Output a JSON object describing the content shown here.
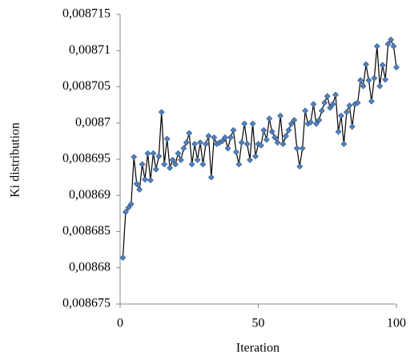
{
  "chart_data": {
    "type": "line",
    "x_label": "Iteration",
    "y_label": "Ki distribution",
    "x": [
      1,
      2,
      3,
      4,
      5,
      6,
      7,
      8,
      9,
      10,
      11,
      12,
      13,
      14,
      15,
      16,
      17,
      18,
      19,
      20,
      21,
      22,
      23,
      24,
      25,
      26,
      27,
      28,
      29,
      30,
      31,
      32,
      33,
      34,
      35,
      36,
      37,
      38,
      39,
      40,
      41,
      42,
      43,
      44,
      45,
      46,
      47,
      48,
      49,
      50,
      51,
      52,
      53,
      54,
      55,
      56,
      57,
      58,
      59,
      60,
      61,
      62,
      63,
      64,
      65,
      66,
      67,
      68,
      69,
      70,
      71,
      72,
      73,
      74,
      75,
      76,
      77,
      78,
      79,
      80,
      81,
      82,
      83,
      84,
      85,
      86,
      87,
      88,
      89,
      90,
      91,
      92,
      93,
      94,
      95,
      96,
      97,
      98,
      99,
      100
    ],
    "values": [
      0.0086814,
      0.0086877,
      0.0086883,
      0.0086888,
      0.0086953,
      0.0086916,
      0.0086908,
      0.0086943,
      0.0086922,
      0.0086958,
      0.0086921,
      0.0086958,
      0.0086936,
      0.0086954,
      0.0087015,
      0.0086943,
      0.0086978,
      0.0086938,
      0.0086949,
      0.0086943,
      0.0086958,
      0.0086949,
      0.0086965,
      0.0086973,
      0.0086986,
      0.0086943,
      0.0086971,
      0.0086949,
      0.0086973,
      0.0086943,
      0.0086971,
      0.0086982,
      0.0086925,
      0.008698,
      0.0086971,
      0.0086973,
      0.0086975,
      0.008698,
      0.0086965,
      0.008698,
      0.008699,
      0.008696,
      0.0086943,
      0.0086973,
      0.0086999,
      0.0086971,
      0.0086949,
      0.0086999,
      0.0086954,
      0.0086971,
      0.0086969,
      0.008699,
      0.0086977,
      0.0087006,
      0.0086988,
      0.008698,
      0.0086973,
      0.008701,
      0.0086971,
      0.0086982,
      0.008699,
      0.0086999,
      0.0087004,
      0.0086965,
      0.008694,
      0.0086965,
      0.0087017,
      0.0086999,
      0.0087001,
      0.0087026,
      0.0086999,
      0.0087004,
      0.0087017,
      0.0087028,
      0.0087037,
      0.0087021,
      0.0087026,
      0.0087039,
      0.0086988,
      0.008701,
      0.0086971,
      0.0087015,
      0.0087024,
      0.0086995,
      0.0087026,
      0.0087028,
      0.0087059,
      0.0087051,
      0.0087081,
      0.0087059,
      0.008703,
      0.0087062,
      0.0087106,
      0.0087051,
      0.008708,
      0.008706,
      0.0087109,
      0.0087115,
      0.0087106,
      0.0087077
    ],
    "line_color": "#000000",
    "marker_color": "#4f81bd",
    "xlim": [
      0,
      100
    ],
    "xticks": [
      0,
      50,
      100
    ],
    "ylim": [
      0.008675,
      0.008715
    ],
    "yticks": [
      {
        "value": 0.008675,
        "label": "0,008675"
      },
      {
        "value": 0.00868,
        "label": "0,00868"
      },
      {
        "value": 0.008685,
        "label": "0,008685"
      },
      {
        "value": 0.00869,
        "label": "0,00869"
      },
      {
        "value": 0.008695,
        "label": "0,008695"
      },
      {
        "value": 0.0087,
        "label": "0,0087"
      },
      {
        "value": 0.008705,
        "label": "0,008705"
      },
      {
        "value": 0.00871,
        "label": "0,00871"
      },
      {
        "value": 0.008715,
        "label": "0,008715"
      }
    ],
    "grid": false
  }
}
